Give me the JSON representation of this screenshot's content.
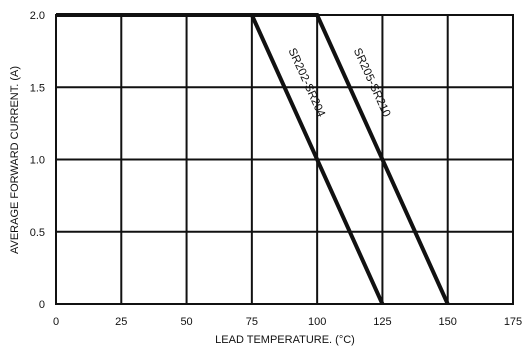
{
  "chart_data": {
    "type": "line",
    "title": "",
    "xlabel": "LEAD TEMPERATURE. (°C)",
    "ylabel": "AVERAGE  FORWARD CURRENT. (A)",
    "xlim": [
      0,
      175
    ],
    "ylim": [
      0,
      2.0
    ],
    "x_ticks": [
      0,
      25,
      50,
      75,
      100,
      125,
      150,
      175
    ],
    "x_tick_labels": [
      "0",
      "25",
      "50",
      "75",
      "100",
      "125",
      "150",
      "175"
    ],
    "y_ticks": [
      0,
      0.5,
      1.0,
      1.5,
      2.0
    ],
    "y_tick_labels": [
      "0",
      "0.5",
      "1.0",
      "1.5",
      "2.0"
    ],
    "grid": true,
    "series": [
      {
        "name": "SR202-SR204",
        "x": [
          0,
          75,
          125
        ],
        "y": [
          2.0,
          2.0,
          0
        ]
      },
      {
        "name": "SR205-SR210",
        "x": [
          0,
          100,
          150
        ],
        "y": [
          2.0,
          2.0,
          0
        ]
      }
    ]
  }
}
